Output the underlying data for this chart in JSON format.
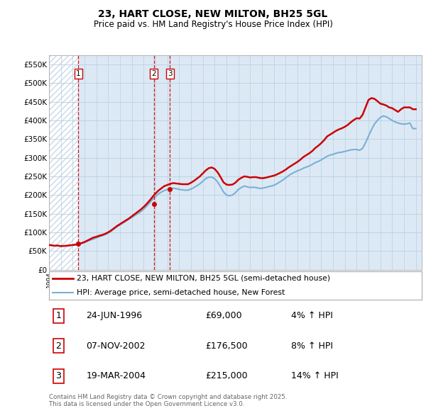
{
  "title": "23, HART CLOSE, NEW MILTON, BH25 5GL",
  "subtitle": "Price paid vs. HM Land Registry's House Price Index (HPI)",
  "ylabel_ticks": [
    "£0",
    "£50K",
    "£100K",
    "£150K",
    "£200K",
    "£250K",
    "£300K",
    "£350K",
    "£400K",
    "£450K",
    "£500K",
    "£550K"
  ],
  "ytick_values": [
    0,
    50000,
    100000,
    150000,
    200000,
    250000,
    300000,
    350000,
    400000,
    450000,
    500000,
    550000
  ],
  "ylim": [
    0,
    575000
  ],
  "xlim_start": 1994.0,
  "xlim_end": 2025.5,
  "transactions": [
    {
      "date_year": 1996.48,
      "price": 69000,
      "label": "1"
    },
    {
      "date_year": 2002.85,
      "price": 176500,
      "label": "2"
    },
    {
      "date_year": 2004.21,
      "price": 215000,
      "label": "3"
    }
  ],
  "transaction_table": [
    {
      "num": "1",
      "date": "24-JUN-1996",
      "price": "£69,000",
      "pct": "4% ↑ HPI"
    },
    {
      "num": "2",
      "date": "07-NOV-2002",
      "price": "£176,500",
      "pct": "8% ↑ HPI"
    },
    {
      "num": "3",
      "date": "19-MAR-2004",
      "price": "£215,000",
      "pct": "14% ↑ HPI"
    }
  ],
  "legend_entries": [
    {
      "label": "23, HART CLOSE, NEW MILTON, BH25 5GL (semi-detached house)",
      "color": "#cc0000",
      "lw": 2.0
    },
    {
      "label": "HPI: Average price, semi-detached house, New Forest",
      "color": "#7ab0d4",
      "lw": 1.5
    }
  ],
  "footer": "Contains HM Land Registry data © Crown copyright and database right 2025.\nThis data is licensed under the Open Government Licence v3.0.",
  "hpi_line_color": "#7ab0d4",
  "price_line_color": "#cc0000",
  "transaction_vline_color": "#cc0000",
  "transaction_dot_color": "#cc0000",
  "grid_color": "#b8cfe0",
  "bg_color": "#dce9f5",
  "hpi_data": {
    "years": [
      1994.0,
      1994.25,
      1994.5,
      1994.75,
      1995.0,
      1995.25,
      1995.5,
      1995.75,
      1996.0,
      1996.25,
      1996.5,
      1996.75,
      1997.0,
      1997.25,
      1997.5,
      1997.75,
      1998.0,
      1998.25,
      1998.5,
      1998.75,
      1999.0,
      1999.25,
      1999.5,
      1999.75,
      2000.0,
      2000.25,
      2000.5,
      2000.75,
      2001.0,
      2001.25,
      2001.5,
      2001.75,
      2002.0,
      2002.25,
      2002.5,
      2002.75,
      2003.0,
      2003.25,
      2003.5,
      2003.75,
      2004.0,
      2004.25,
      2004.5,
      2004.75,
      2005.0,
      2005.25,
      2005.5,
      2005.75,
      2006.0,
      2006.25,
      2006.5,
      2006.75,
      2007.0,
      2007.25,
      2007.5,
      2007.75,
      2008.0,
      2008.25,
      2008.5,
      2008.75,
      2009.0,
      2009.25,
      2009.5,
      2009.75,
      2010.0,
      2010.25,
      2010.5,
      2010.75,
      2011.0,
      2011.25,
      2011.5,
      2011.75,
      2012.0,
      2012.25,
      2012.5,
      2012.75,
      2013.0,
      2013.25,
      2013.5,
      2013.75,
      2014.0,
      2014.25,
      2014.5,
      2014.75,
      2015.0,
      2015.25,
      2015.5,
      2015.75,
      2016.0,
      2016.25,
      2016.5,
      2016.75,
      2017.0,
      2017.25,
      2017.5,
      2017.75,
      2018.0,
      2018.25,
      2018.5,
      2018.75,
      2019.0,
      2019.25,
      2019.5,
      2019.75,
      2020.0,
      2020.25,
      2020.5,
      2020.75,
      2021.0,
      2021.25,
      2021.5,
      2021.75,
      2022.0,
      2022.25,
      2022.5,
      2022.75,
      2023.0,
      2023.25,
      2023.5,
      2023.75,
      2024.0,
      2024.25,
      2024.5,
      2024.75,
      2025.0
    ],
    "hpi_values": [
      66000,
      65000,
      64000,
      64500,
      63000,
      63500,
      64000,
      65000,
      66000,
      67000,
      68000,
      70000,
      73000,
      76000,
      79000,
      82000,
      85000,
      88000,
      91000,
      94000,
      98000,
      103000,
      109000,
      115000,
      120000,
      125000,
      130000,
      135000,
      140000,
      145000,
      150000,
      155000,
      162000,
      170000,
      179000,
      188000,
      196000,
      203000,
      208000,
      212000,
      215000,
      218000,
      218000,
      217000,
      215000,
      214000,
      213000,
      213000,
      216000,
      220000,
      225000,
      230000,
      237000,
      244000,
      248000,
      248000,
      244000,
      235000,
      222000,
      208000,
      200000,
      198000,
      200000,
      206000,
      215000,
      220000,
      224000,
      222000,
      220000,
      221000,
      220000,
      218000,
      218000,
      220000,
      222000,
      224000,
      226000,
      230000,
      235000,
      240000,
      246000,
      252000,
      257000,
      261000,
      265000,
      268000,
      272000,
      275000,
      278000,
      282000,
      287000,
      290000,
      294000,
      299000,
      304000,
      307000,
      309000,
      312000,
      314000,
      315000,
      317000,
      319000,
      321000,
      322000,
      322000,
      320000,
      325000,
      340000,
      358000,
      375000,
      390000,
      400000,
      408000,
      412000,
      410000,
      405000,
      400000,
      396000,
      393000,
      391000,
      390000,
      391000,
      393000,
      378000,
      378000
    ],
    "price_values": [
      66000,
      65000,
      64000,
      64500,
      63000,
      63500,
      64000,
      65000,
      66000,
      67000,
      69000,
      71000,
      74000,
      78000,
      82000,
      86000,
      88000,
      91000,
      93000,
      96000,
      100000,
      105000,
      111000,
      117000,
      122000,
      127000,
      132000,
      137000,
      143000,
      149000,
      155000,
      161000,
      168000,
      176000,
      185000,
      195000,
      204000,
      212000,
      218000,
      224000,
      227000,
      230000,
      232000,
      231000,
      230000,
      229000,
      229000,
      229000,
      233000,
      238000,
      244000,
      250000,
      258000,
      266000,
      272000,
      274000,
      270000,
      261000,
      248000,
      234000,
      228000,
      227000,
      228000,
      233000,
      241000,
      246000,
      250000,
      249000,
      247000,
      248000,
      248000,
      246000,
      245000,
      246000,
      248000,
      250000,
      252000,
      255000,
      259000,
      263000,
      268000,
      274000,
      279000,
      284000,
      289000,
      295000,
      302000,
      307000,
      312000,
      318000,
      326000,
      332000,
      339000,
      347000,
      357000,
      362000,
      367000,
      372000,
      376000,
      379000,
      383000,
      388000,
      395000,
      401000,
      406000,
      405000,
      415000,
      435000,
      455000,
      460000,
      458000,
      452000,
      445000,
      443000,
      440000,
      435000,
      433000,
      428000,
      423000,
      430000,
      435000,
      435000,
      435000,
      430000,
      430000
    ]
  }
}
